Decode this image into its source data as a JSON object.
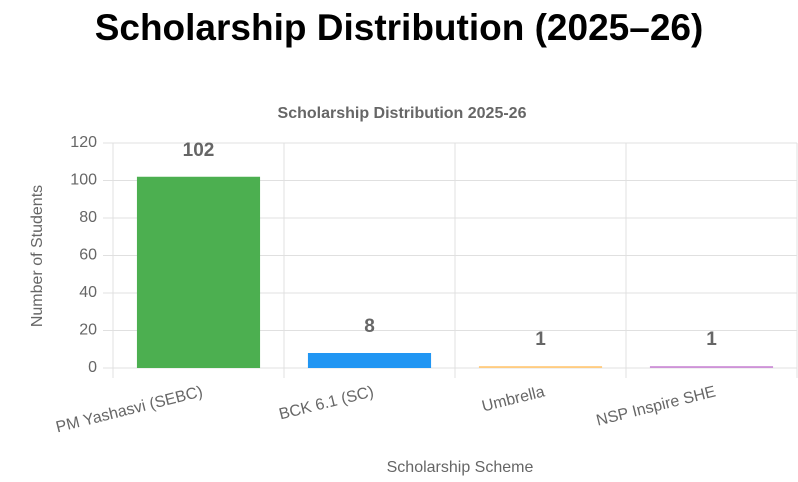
{
  "heading": "Scholarship Distribution (2025–26)",
  "chart_data": {
    "type": "bar",
    "title": "Scholarship Distribution 2025-26",
    "categories": [
      "PM Yashasvi (SEBC)",
      "BCK 6.1 (SC)",
      "Umbrella",
      "NSP Inspire SHE"
    ],
    "values": [
      102,
      8,
      1,
      1
    ],
    "colors": [
      "#4caf50",
      "#2196f3",
      "#ffcc80",
      "#ce93d8"
    ],
    "x_label": "Scholarship Scheme",
    "y_label": "Number of Students",
    "ylim": [
      0,
      120
    ],
    "yticks": [
      0,
      20,
      40,
      60,
      80,
      100,
      120
    ],
    "grid": true
  }
}
